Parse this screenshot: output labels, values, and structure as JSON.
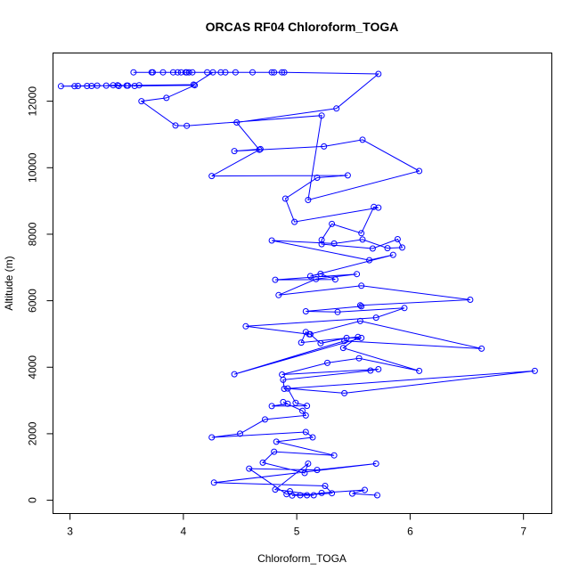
{
  "chart_data": {
    "type": "line",
    "title": "ORCAS RF04 Chloroform_TOGA",
    "xlabel": "Chloroform_TOGA",
    "ylabel": "Altitude (m)",
    "xlim": [
      2.85,
      7.25
    ],
    "ylim": [
      -400,
      13450
    ],
    "x_ticks": [
      3,
      4,
      5,
      6,
      7
    ],
    "y_ticks": [
      0,
      2000,
      4000,
      6000,
      8000,
      10000,
      12000
    ],
    "grid": false,
    "legend": "none",
    "series_color": "#0000ff",
    "marker": "open-circle",
    "series": [
      {
        "points": [
          [
            5.71,
            150
          ],
          [
            5.49,
            200
          ],
          [
            5.6,
            310
          ],
          [
            5.22,
            220
          ],
          [
            5.09,
            150
          ],
          [
            4.96,
            140
          ],
          [
            5.03,
            150
          ],
          [
            5.31,
            210
          ],
          [
            5.25,
            430
          ],
          [
            4.27,
            530
          ],
          [
            5.7,
            1100
          ],
          [
            5.18,
            910
          ],
          [
            4.58,
            950
          ],
          [
            4.91,
            180
          ],
          [
            5.15,
            150
          ],
          [
            4.94,
            270
          ],
          [
            4.81,
            320
          ],
          [
            5.1,
            1100
          ],
          [
            5.07,
            820
          ],
          [
            4.7,
            1130
          ],
          [
            4.8,
            1460
          ],
          [
            5.33,
            1350
          ],
          [
            4.82,
            1760
          ],
          [
            5.14,
            1890
          ],
          [
            5.08,
            2050
          ],
          [
            4.25,
            1890
          ],
          [
            4.5,
            2000
          ],
          [
            4.72,
            2430
          ],
          [
            5.08,
            2550
          ],
          [
            5.05,
            2690
          ],
          [
            4.88,
            2950
          ],
          [
            4.92,
            2900
          ],
          [
            4.78,
            2830
          ],
          [
            5.09,
            2840
          ],
          [
            4.99,
            2930
          ],
          [
            4.92,
            3360
          ],
          [
            5.42,
            3220
          ],
          [
            7.1,
            3890
          ],
          [
            4.89,
            3350
          ],
          [
            4.88,
            3620
          ],
          [
            5.65,
            3900
          ],
          [
            5.72,
            3940
          ],
          [
            4.87,
            3780
          ],
          [
            5.27,
            4130
          ],
          [
            5.55,
            4270
          ],
          [
            6.08,
            3890
          ],
          [
            5.41,
            4580
          ],
          [
            5.54,
            4910
          ],
          [
            5.04,
            4740
          ],
          [
            5.08,
            5060
          ],
          [
            5.12,
            4990
          ],
          [
            5.21,
            4720
          ],
          [
            5.44,
            4880
          ],
          [
            5.57,
            4880
          ],
          [
            4.45,
            3790
          ],
          [
            5.42,
            4790
          ],
          [
            6.63,
            4560
          ],
          [
            5.56,
            5390
          ],
          [
            5.11,
            4990
          ],
          [
            4.55,
            5230
          ],
          [
            5.7,
            5490
          ],
          [
            5.95,
            5780
          ],
          [
            5.36,
            5660
          ],
          [
            5.08,
            5680
          ],
          [
            5.57,
            5830
          ],
          [
            5.56,
            5860
          ],
          [
            6.53,
            6030
          ],
          [
            5.57,
            6450
          ],
          [
            4.84,
            6170
          ],
          [
            5.17,
            6650
          ],
          [
            5.53,
            6800
          ],
          [
            4.81,
            6630
          ],
          [
            5.34,
            6640
          ],
          [
            5.21,
            6810
          ],
          [
            5.12,
            6740
          ],
          [
            5.85,
            7380
          ],
          [
            5.64,
            7220
          ],
          [
            4.78,
            7810
          ],
          [
            5.33,
            7720
          ],
          [
            5.58,
            7840
          ],
          [
            5.8,
            7580
          ],
          [
            5.93,
            7600
          ],
          [
            5.89,
            7850
          ],
          [
            5.67,
            7570
          ],
          [
            5.22,
            7700
          ],
          [
            5.22,
            7830
          ],
          [
            5.31,
            8310
          ],
          [
            5.57,
            8030
          ],
          [
            5.68,
            8820
          ],
          [
            5.72,
            8800
          ],
          [
            4.98,
            8370
          ],
          [
            4.9,
            9070
          ],
          [
            5.18,
            9700
          ],
          [
            5.45,
            9770
          ],
          [
            4.25,
            9750
          ],
          [
            4.68,
            10560
          ],
          [
            4.45,
            10500
          ],
          [
            5.24,
            10640
          ],
          [
            5.58,
            10840
          ],
          [
            6.08,
            9900
          ],
          [
            5.1,
            9030
          ],
          [
            5.22,
            11570
          ],
          [
            4.03,
            11260
          ],
          [
            3.93,
            11270
          ],
          [
            3.63,
            12000
          ],
          [
            3.85,
            12100
          ],
          [
            4.1,
            12480
          ],
          [
            3.57,
            12460
          ],
          [
            3.5,
            12470
          ],
          [
            3.43,
            12460
          ],
          [
            3.24,
            12470
          ],
          [
            3.07,
            12460
          ],
          [
            2.92,
            12450
          ],
          [
            3.04,
            12450
          ],
          [
            3.15,
            12460
          ],
          [
            3.19,
            12460
          ],
          [
            3.32,
            12470
          ],
          [
            3.38,
            12480
          ],
          [
            3.42,
            12480
          ],
          [
            3.51,
            12470
          ],
          [
            3.61,
            12480
          ],
          [
            4.09,
            12500
          ],
          [
            4.26,
            12870
          ],
          [
            4.02,
            12870
          ],
          [
            3.95,
            12870
          ],
          [
            3.72,
            12870
          ],
          [
            3.56,
            12870
          ],
          [
            3.73,
            12870
          ],
          [
            3.82,
            12870
          ],
          [
            3.91,
            12870
          ],
          [
            3.98,
            12870
          ],
          [
            4.03,
            12870
          ],
          [
            4.05,
            12870
          ],
          [
            4.08,
            12870
          ],
          [
            4.21,
            12870
          ],
          [
            4.33,
            12870
          ],
          [
            4.37,
            12870
          ],
          [
            4.46,
            12870
          ],
          [
            4.61,
            12870
          ],
          [
            4.78,
            12870
          ],
          [
            4.8,
            12870
          ],
          [
            4.87,
            12870
          ],
          [
            4.89,
            12870
          ],
          [
            5.72,
            12820
          ],
          [
            5.35,
            11780
          ],
          [
            4.47,
            11360
          ],
          [
            4.67,
            10540
          ]
        ]
      }
    ]
  }
}
